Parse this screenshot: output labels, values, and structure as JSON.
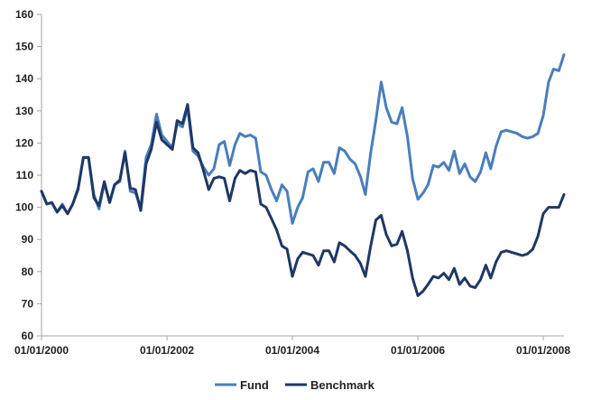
{
  "chart_data": {
    "type": "line",
    "title": "",
    "xlabel": "",
    "ylabel": "",
    "ylim": [
      60,
      160
    ],
    "yticks": [
      60,
      70,
      80,
      90,
      100,
      110,
      120,
      130,
      140,
      150,
      160
    ],
    "xlim": [
      "2000-01-01",
      "2008-05-01"
    ],
    "xticks": [
      "2000-01-01",
      "2002-01-01",
      "2004-01-01",
      "2006-01-01",
      "2008-01-01"
    ],
    "xtick_labels": [
      "01/01/2000",
      "01/01/2002",
      "01/01/2004",
      "01/01/2006",
      "01/01/2008"
    ],
    "grid": false,
    "legend_position": "bottom",
    "x": [
      "2000-01",
      "2000-02",
      "2000-03",
      "2000-04",
      "2000-05",
      "2000-06",
      "2000-07",
      "2000-08",
      "2000-09",
      "2000-10",
      "2000-11",
      "2000-12",
      "2001-01",
      "2001-02",
      "2001-03",
      "2001-04",
      "2001-05",
      "2001-06",
      "2001-07",
      "2001-08",
      "2001-09",
      "2001-10",
      "2001-11",
      "2001-12",
      "2002-01",
      "2002-02",
      "2002-03",
      "2002-04",
      "2002-05",
      "2002-06",
      "2002-07",
      "2002-08",
      "2002-09",
      "2002-10",
      "2002-11",
      "2002-12",
      "2003-01",
      "2003-02",
      "2003-03",
      "2003-04",
      "2003-05",
      "2003-06",
      "2003-07",
      "2003-08",
      "2003-09",
      "2003-10",
      "2003-11",
      "2003-12",
      "2004-01",
      "2004-02",
      "2004-03",
      "2004-04",
      "2004-05",
      "2004-06",
      "2004-07",
      "2004-08",
      "2004-09",
      "2004-10",
      "2004-11",
      "2004-12",
      "2005-01",
      "2005-02",
      "2005-03",
      "2005-04",
      "2005-05",
      "2005-06",
      "2005-07",
      "2005-08",
      "2005-09",
      "2005-10",
      "2005-11",
      "2005-12",
      "2006-01",
      "2006-02",
      "2006-03",
      "2006-04",
      "2006-05",
      "2006-06",
      "2006-07",
      "2006-08",
      "2006-09",
      "2006-10",
      "2006-11",
      "2006-12",
      "2007-01",
      "2007-02",
      "2007-03",
      "2007-04",
      "2007-05",
      "2007-06",
      "2007-07",
      "2007-08",
      "2007-09",
      "2007-10",
      "2007-11",
      "2007-12",
      "2008-01",
      "2008-02",
      "2008-03",
      "2008-04",
      "2008-05"
    ],
    "series": [
      {
        "name": "Fund",
        "color": "#4a7ebb",
        "values": [
          105,
          101,
          101.5,
          98.5,
          101,
          98,
          101,
          106,
          115.5,
          115.5,
          104,
          99.5,
          107.5,
          101.5,
          107,
          108,
          117.5,
          105,
          104.5,
          100,
          115.5,
          119.5,
          129,
          122.5,
          120.5,
          118.5,
          126,
          125,
          131,
          117.5,
          116,
          112.5,
          110,
          112,
          119.5,
          120.5,
          113,
          119.5,
          123,
          122,
          122.5,
          121.5,
          111,
          110,
          105.5,
          102,
          107,
          105,
          95,
          100,
          103,
          111,
          112,
          108,
          114,
          114,
          110.5,
          118.5,
          117.5,
          115,
          113.5,
          109.5,
          104,
          117,
          127,
          139,
          131,
          126.5,
          126,
          131,
          122,
          109,
          102.5,
          104.5,
          107,
          113,
          112.5,
          114,
          111.5,
          117.5,
          110.5,
          113.5,
          109.5,
          108,
          111,
          117,
          112,
          119,
          123.5,
          124,
          123.5,
          123,
          122,
          121.5,
          122,
          123,
          128.5,
          139,
          143,
          142.5,
          147.5
        ]
      },
      {
        "name": "Benchmark",
        "color": "#1f3864",
        "values": [
          105,
          101,
          101.5,
          98.5,
          100.5,
          98,
          101,
          105.5,
          115.5,
          115.5,
          103,
          100.5,
          108,
          101.5,
          107,
          108.5,
          117,
          106,
          105.5,
          99,
          113.5,
          118,
          126.5,
          121,
          119.5,
          118,
          127,
          126,
          132,
          118.5,
          117,
          111.5,
          105.5,
          109,
          109.5,
          109,
          102,
          109,
          111.5,
          110.5,
          111.5,
          111,
          101,
          100,
          96.5,
          93,
          88,
          87,
          78.5,
          84,
          86,
          85.5,
          85,
          82,
          86.5,
          86.5,
          83,
          89,
          88,
          86.5,
          85,
          82.5,
          78.5,
          88,
          96,
          97.5,
          91.5,
          88,
          88.5,
          92.5,
          86.5,
          78,
          72.5,
          74,
          76,
          78.5,
          78,
          79.5,
          77.5,
          81,
          76,
          78,
          75.5,
          75,
          77.5,
          82,
          78,
          83,
          86,
          86.5,
          86,
          85.5,
          85,
          85.5,
          87,
          91,
          98,
          100,
          100,
          100,
          104
        ]
      }
    ]
  }
}
